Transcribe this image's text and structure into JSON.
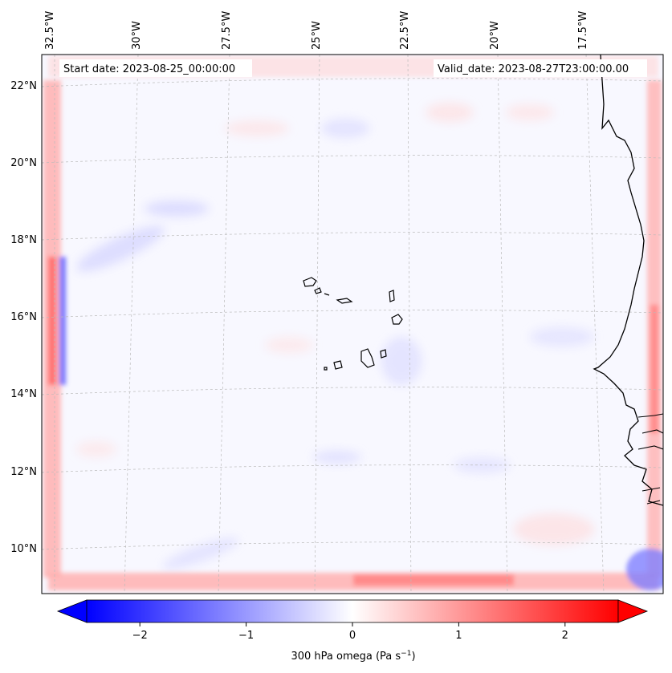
{
  "map": {
    "start_date": "Start date: 2023-08-25_00:00:00",
    "valid_date": "Valid_date: 2023-08-27T23:00:00.00",
    "lon_labels": [
      "32.5°W",
      "30°W",
      "27.5°W",
      "25°W",
      "22.5°W",
      "20°W",
      "17.5°W"
    ],
    "lat_labels": [
      "22°N",
      "20°N",
      "18°N",
      "16°N",
      "14°N",
      "12°N",
      "10°N"
    ],
    "field": "300 hPa omega",
    "colors": {
      "negative": "#0000ff",
      "positive": "#ff0000",
      "neutral": "#ffffff",
      "coast": "#000000",
      "grid": "#bbbbbb"
    }
  },
  "colorbar": {
    "label": "300 hPa omega (Pa s",
    "label_sup": "−1",
    "label_end": ")",
    "ticks": [
      "−2",
      "−1",
      "0",
      "1",
      "2"
    ],
    "tick_values": [
      -2,
      -1,
      0,
      1,
      2
    ],
    "range": [
      -2.5,
      2.5
    ],
    "extend": "both"
  }
}
